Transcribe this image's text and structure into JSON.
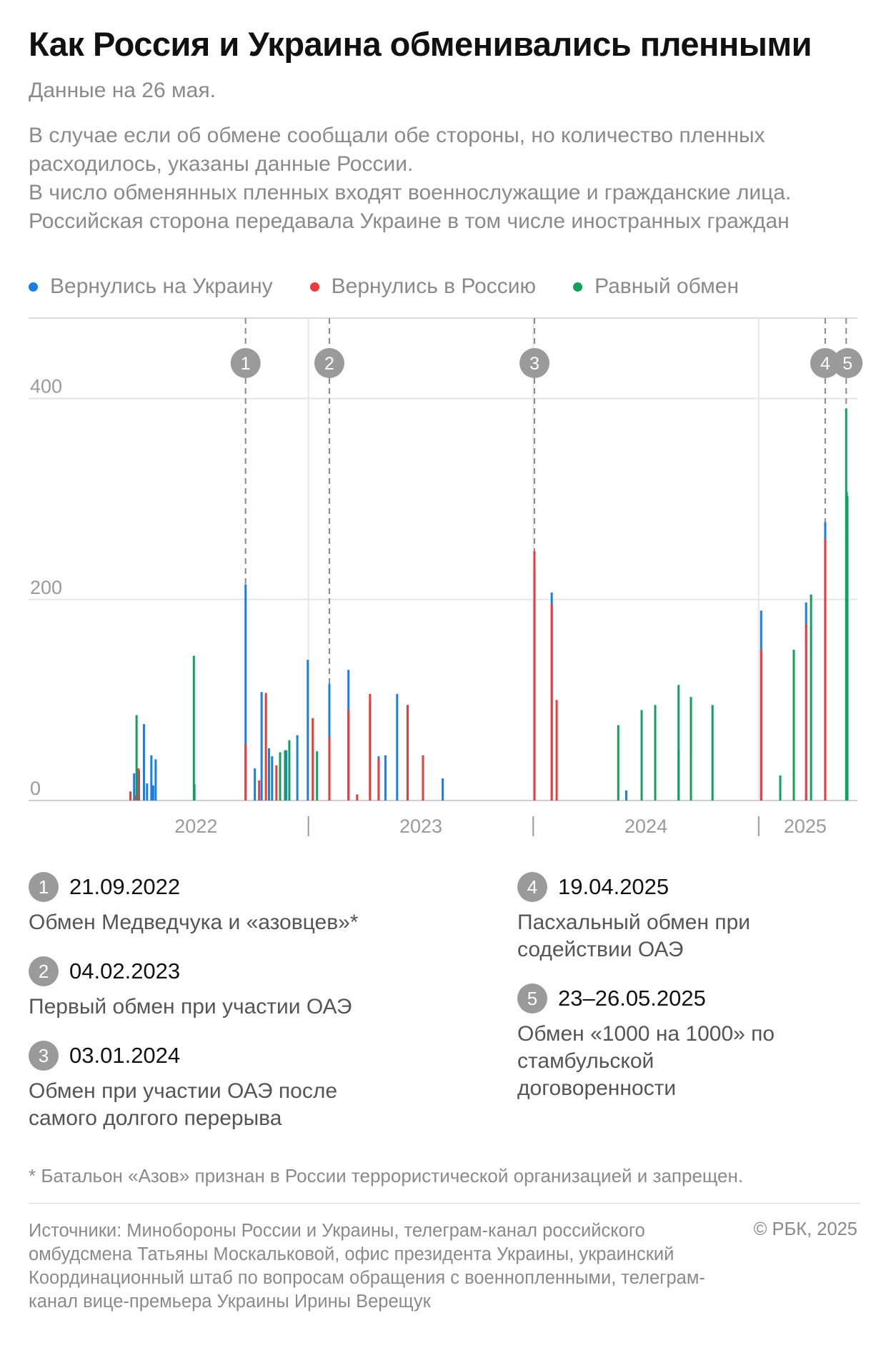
{
  "header": {
    "title": "Как Россия и Украина обменивались пленными",
    "subtitle": "Данные на 26 мая.",
    "note_1": "В случае если об обмене сообщали обе стороны, но количество пленных расходилось, указаны данные России.",
    "note_2": "В число обменянных пленных входят военнослужащие и гражданские лица. Российская сторона передавала Украине в том числе иностранных граждан"
  },
  "legend": [
    {
      "label": "Вернулись на Украину",
      "color": "#1a7fe5"
    },
    {
      "label": "Вернулись в Россию",
      "color": "#ee3a3a"
    },
    {
      "label": "Равный обмен",
      "color": "#12a05e"
    }
  ],
  "chart_data": {
    "type": "bar",
    "x_axis": {
      "type": "date",
      "start": "2022-01-01",
      "end": "2025-06-01",
      "tick_labels": [
        "2022",
        "2023",
        "2024",
        "2025"
      ]
    },
    "ylim": [
      0,
      480
    ],
    "yticks": [
      0,
      200,
      400
    ],
    "grid": true,
    "legend_position": "top",
    "series": [
      {
        "name": "Вернулись на Украину",
        "color": "#1a7fe5",
        "points": [
          [
            "2022-03-24",
            27
          ],
          [
            "2022-04-01",
            30
          ],
          [
            "2022-04-09",
            76
          ],
          [
            "2022-04-14",
            17
          ],
          [
            "2022-04-21",
            45
          ],
          [
            "2022-04-24",
            15
          ],
          [
            "2022-04-28",
            41
          ],
          [
            "2022-09-21",
            215
          ],
          [
            "2022-10-06",
            32
          ],
          [
            "2022-10-17",
            108
          ],
          [
            "2022-10-29",
            52
          ],
          [
            "2022-11-03",
            44
          ],
          [
            "2022-11-26",
            50
          ],
          [
            "2022-12-14",
            65
          ],
          [
            "2022-12-31",
            140
          ],
          [
            "2023-02-04",
            116
          ],
          [
            "2023-03-07",
            130
          ],
          [
            "2023-04-11",
            100
          ],
          [
            "2023-04-25",
            44
          ],
          [
            "2023-05-06",
            45
          ],
          [
            "2023-05-25",
            106
          ],
          [
            "2023-06-11",
            95
          ],
          [
            "2023-08-07",
            22
          ],
          [
            "2024-01-03",
            230
          ],
          [
            "2024-01-31",
            207
          ],
          [
            "2024-05-31",
            10
          ],
          [
            "2024-08-24",
            50
          ],
          [
            "2025-01-05",
            189
          ],
          [
            "2025-03-19",
            197
          ],
          [
            "2025-04-19",
            277
          ]
        ]
      },
      {
        "name": "Вернулись в Россию",
        "color": "#ee3a3a",
        "points": [
          [
            "2022-03-18",
            9
          ],
          [
            "2022-03-26",
            5
          ],
          [
            "2022-03-31",
            32
          ],
          [
            "2022-09-21",
            56
          ],
          [
            "2022-10-13",
            20
          ],
          [
            "2022-10-24",
            107
          ],
          [
            "2022-11-10",
            35
          ],
          [
            "2023-01-08",
            82
          ],
          [
            "2023-02-04",
            63
          ],
          [
            "2023-03-07",
            90
          ],
          [
            "2023-03-21",
            6
          ],
          [
            "2023-04-11",
            106
          ],
          [
            "2023-04-25",
            42
          ],
          [
            "2023-06-11",
            95
          ],
          [
            "2023-07-06",
            45
          ],
          [
            "2024-01-03",
            248
          ],
          [
            "2024-01-31",
            195
          ],
          [
            "2024-02-08",
            100
          ],
          [
            "2025-01-05",
            150
          ],
          [
            "2025-03-19",
            175
          ],
          [
            "2025-04-19",
            260
          ]
        ]
      },
      {
        "name": "Равный обмен",
        "color": "#12a05e",
        "points": [
          [
            "2022-03-28",
            85
          ],
          [
            "2022-06-29",
            144
          ],
          [
            "2022-06-30",
            16
          ],
          [
            "2022-11-16",
            48
          ],
          [
            "2022-11-24",
            50
          ],
          [
            "2022-12-01",
            60
          ],
          [
            "2023-01-15",
            49
          ],
          [
            "2024-05-18",
            75
          ],
          [
            "2024-06-25",
            90
          ],
          [
            "2024-07-17",
            95
          ],
          [
            "2024-08-24",
            115
          ],
          [
            "2024-09-13",
            103
          ],
          [
            "2024-10-18",
            95
          ],
          [
            "2025-02-05",
            25
          ],
          [
            "2025-02-27",
            150
          ],
          [
            "2025-03-27",
            205
          ],
          [
            "2025-05-23",
            390
          ],
          [
            "2025-05-24",
            307
          ],
          [
            "2025-05-25",
            303
          ]
        ]
      }
    ],
    "annotations": [
      {
        "num": "1",
        "date": "2022-09-21"
      },
      {
        "num": "2",
        "date": "2023-02-04"
      },
      {
        "num": "3",
        "date": "2024-01-03"
      },
      {
        "num": "4",
        "date": "2025-04-19"
      },
      {
        "num": "5",
        "date": "2025-05-23"
      }
    ]
  },
  "events": [
    {
      "num": "1",
      "date": "21.09.2022",
      "desc": "Обмен Медведчука и «азовцев»*"
    },
    {
      "num": "2",
      "date": "04.02.2023",
      "desc": "Первый обмен при участии ОАЭ"
    },
    {
      "num": "3",
      "date": "03.01.2024",
      "desc": "Обмен при участии ОАЭ после самого долгого перерыва"
    },
    {
      "num": "4",
      "date": "19.04.2025",
      "desc": "Пасхальный обмен при содействии ОАЭ"
    },
    {
      "num": "5",
      "date": "23–26.05.2025",
      "desc": "Обмен «1000 на 1000» по стамбульской договоренности"
    }
  ],
  "footnote": "* Батальон «Азов» признан в России террористической организацией и запрещен.",
  "sources": "Источники: Минобороны России и Украины, телеграм-канал российского омбудсмена Татьяны Москальковой, офис президента Украины, украинский Координационный штаб по вопросам обращения с военнопленными, телеграм-канал вице-премьера Украины Ирины Верещук",
  "copyright": "© РБК, 2025"
}
